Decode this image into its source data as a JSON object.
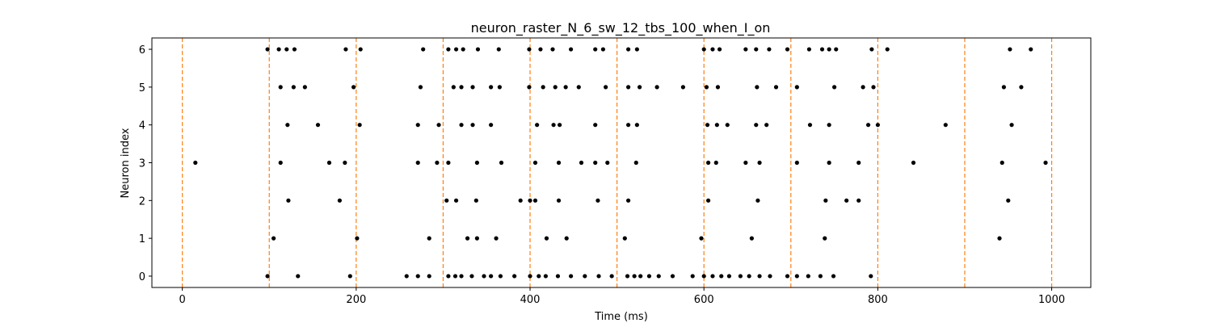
{
  "chart_data": {
    "type": "scatter",
    "title": "neuron_raster_N_6_sw_12_tbs_100_when_I_on",
    "xlabel": "Time (ms)",
    "ylabel": "Neuron index",
    "xlim": [
      -35,
      1045
    ],
    "ylim": [
      -0.3,
      6.3
    ],
    "xticks": [
      0,
      200,
      400,
      600,
      800,
      1000
    ],
    "yticks": [
      0,
      1,
      2,
      3,
      4,
      5,
      6
    ],
    "grid": false,
    "marker_color": "#000000",
    "vline_color": "#ff7f0e",
    "vlines": [
      0,
      100,
      200,
      300,
      400,
      500,
      600,
      700,
      800,
      900,
      1000
    ],
    "series": [
      {
        "neuron": 6,
        "x": [
          98,
          111,
          120,
          129,
          188,
          205,
          277,
          306,
          315,
          323,
          340,
          364,
          399,
          412,
          426,
          447,
          475,
          484,
          513,
          523,
          600,
          610,
          618,
          648,
          660,
          675,
          696,
          721,
          736,
          744,
          752,
          793,
          811,
          952,
          976
        ]
      },
      {
        "neuron": 5,
        "x": [
          113,
          128,
          141,
          197,
          274,
          312,
          321,
          334,
          355,
          365,
          399,
          415,
          429,
          441,
          456,
          487,
          513,
          526,
          546,
          576,
          603,
          616,
          661,
          683,
          707,
          750,
          783,
          795,
          945,
          965
        ]
      },
      {
        "neuron": 4,
        "x": [
          121,
          156,
          204,
          271,
          295,
          321,
          334,
          355,
          408,
          427,
          434,
          475,
          513,
          523,
          604,
          615,
          627,
          660,
          672,
          722,
          744,
          789,
          800,
          878,
          954
        ]
      },
      {
        "neuron": 3,
        "x": [
          15,
          113,
          169,
          187,
          271,
          293,
          306,
          339,
          367,
          406,
          433,
          459,
          475,
          489,
          522,
          605,
          614,
          648,
          664,
          707,
          744,
          778,
          841,
          943,
          993
        ]
      },
      {
        "neuron": 2,
        "x": [
          122,
          181,
          304,
          315,
          338,
          389,
          400,
          406,
          433,
          478,
          513,
          605,
          662,
          740,
          764,
          778,
          950
        ]
      },
      {
        "neuron": 1,
        "x": [
          105,
          201,
          284,
          328,
          339,
          361,
          419,
          442,
          509,
          597,
          655,
          739,
          940
        ]
      },
      {
        "neuron": 0,
        "x": [
          98,
          133,
          193,
          258,
          271,
          284,
          306,
          314,
          321,
          333,
          347,
          355,
          366,
          382,
          400,
          410,
          418,
          432,
          447,
          463,
          479,
          494,
          512,
          520,
          527,
          537,
          548,
          564,
          587,
          600,
          610,
          620,
          629,
          642,
          652,
          664,
          676,
          696,
          707,
          720,
          734,
          749,
          792
        ]
      }
    ]
  }
}
